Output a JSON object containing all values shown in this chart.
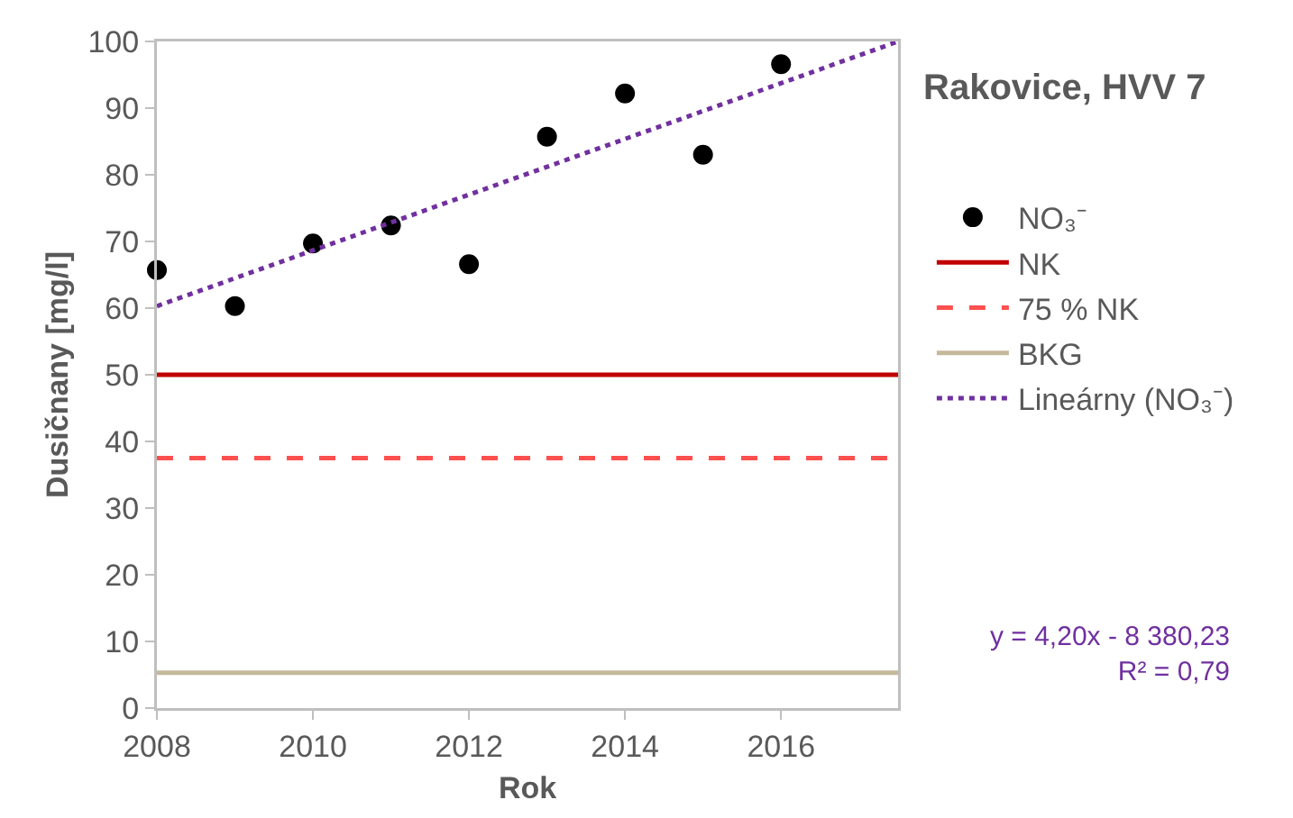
{
  "chart_data": {
    "type": "scatter",
    "title": "Rakovice, HVV 7",
    "xlabel": "Rok",
    "ylabel": "Dusičnany [mg/l]",
    "x": [
      2008,
      2009,
      2010,
      2011,
      2012,
      2013,
      2014,
      2015,
      2016
    ],
    "series": [
      {
        "name": "NO₃⁻",
        "color": "#000000",
        "marker": "circle",
        "values": [
          65.7,
          60.3,
          69.7,
          72.4,
          66.6,
          85.7,
          92.2,
          83.0,
          96.6
        ]
      },
      {
        "name": "Lineárny (NO₃⁻)",
        "type": "line",
        "color": "#7030a0",
        "line_style": "dotted",
        "x": [
          2008,
          2017.5
        ],
        "values": [
          60.3,
          100
        ]
      }
    ],
    "ref_lines": [
      {
        "axis": "y",
        "value": 50,
        "label": "NK",
        "color": "#c00000"
      },
      {
        "axis": "y",
        "value": 37.5,
        "label": "75 % NK",
        "color": "#ff5050",
        "line_style": "dashed"
      },
      {
        "axis": "y",
        "value": 5.3,
        "label": "BKG",
        "color": "#c4b99a"
      }
    ],
    "xlim": [
      2008,
      2017.5
    ],
    "xticks": [
      2008,
      2010,
      2012,
      2014,
      2016
    ],
    "ylim": [
      0,
      100
    ],
    "yticks": [
      0,
      10,
      20,
      30,
      40,
      50,
      60,
      70,
      80,
      90,
      100
    ],
    "grid": false,
    "legend": "right",
    "annotations": [
      "y = 4,20x - 8 380,23\nR² = 0,79"
    ]
  }
}
